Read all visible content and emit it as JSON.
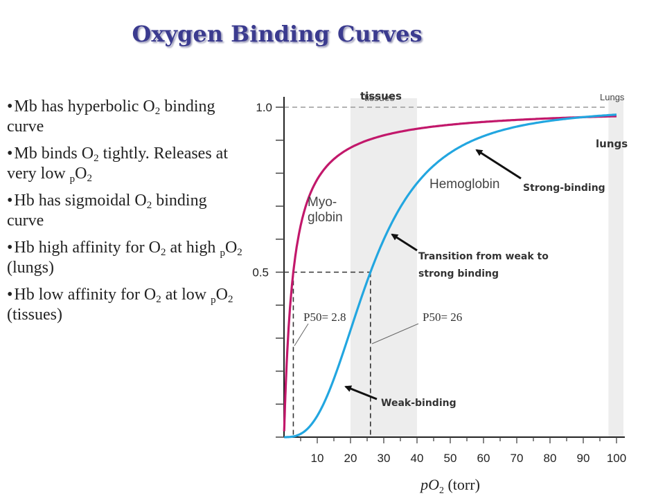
{
  "title": "Oxygen Binding Curves",
  "bullets": [
    {
      "parts": [
        "Mb has hyperbolic O",
        "2",
        " binding curve"
      ]
    },
    {
      "parts": [
        "Mb binds O",
        "2",
        " tightly. Releases at very low ",
        "p",
        "O",
        "2"
      ]
    },
    {
      "parts": [
        "Hb has sigmoidal O",
        "2",
        " binding curve"
      ]
    },
    {
      "parts": [
        "Hb high affinity for O",
        "2",
        " at high ",
        "p",
        "O",
        "2",
        " (lungs)"
      ]
    },
    {
      "parts": [
        "Hb low affinity for O",
        "2",
        " at low ",
        "p",
        "O",
        "2",
        " (tissues)"
      ]
    }
  ],
  "chart_data": {
    "type": "line",
    "xlabel_main": "pO",
    "xlabel_sub": "2",
    "xlabel_unit": " (torr)",
    "x_ticks": [
      "10",
      "20",
      "30",
      "40",
      "50",
      "60",
      "70",
      "80",
      "90",
      "100"
    ],
    "y_ticks": [
      "0.5",
      "1.0"
    ],
    "xlim": [
      0,
      100
    ],
    "ylim": [
      0,
      1.0
    ],
    "bands": [
      {
        "label": "tissues",
        "x": [
          20,
          40
        ]
      },
      {
        "label": "Lungs",
        "x": [
          98,
          100
        ]
      }
    ],
    "series": [
      {
        "name": "Myo-globin",
        "label_line1": "Myo-",
        "label_line2": "globin",
        "p50": 2.8,
        "n": 1,
        "color": "#c2186b"
      },
      {
        "name": "Hemoglobin",
        "p50": 26,
        "n": 2.8,
        "color": "#22a6e0"
      }
    ],
    "p50_labels": [
      "P50= 2.8",
      "P50= 26"
    ],
    "annotations": {
      "tissues": "tissues",
      "lungs": "lungs",
      "strong": "Strong-binding",
      "transition_line1": "Transition from weak to",
      "transition_line2": "strong binding",
      "weak": "Weak-binding"
    }
  }
}
